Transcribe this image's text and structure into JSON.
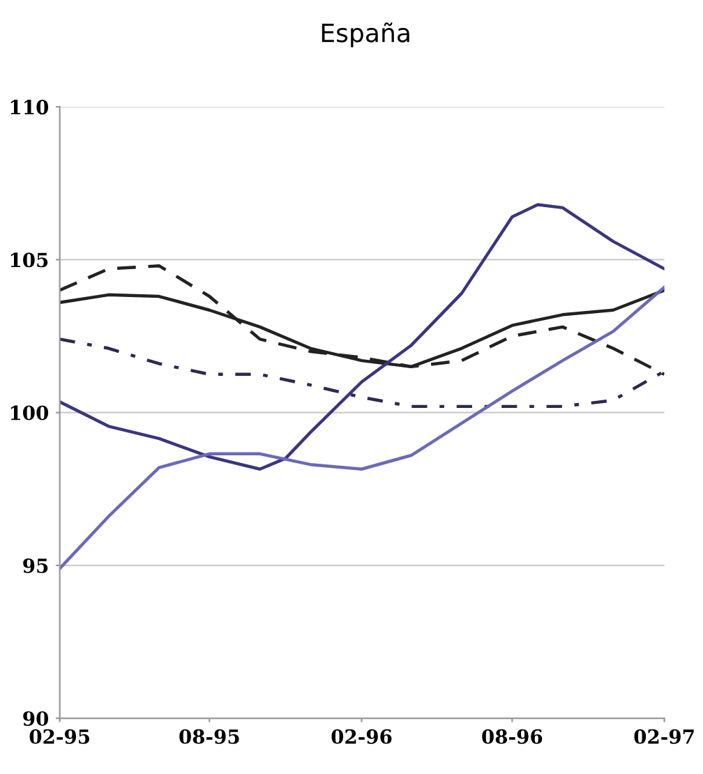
{
  "chart_data": {
    "type": "line",
    "title": "España",
    "x": [
      "1995-02",
      "1995-04",
      "1995-06",
      "1995-08",
      "1995-10",
      "1995-12",
      "1996-02",
      "1996-04",
      "1996-06",
      "1996-08",
      "1996-10",
      "1996-12",
      "1997-02"
    ],
    "series": [
      {
        "color": "#222222",
        "line_style": "solid",
        "values": [
          103.6,
          103.85,
          103.8,
          103.35,
          102.8,
          102.1,
          101.7,
          101.5,
          102.1,
          102.85,
          103.2,
          103.35,
          104.0
        ]
      },
      {
        "color": "#222222",
        "line_style": "dashed",
        "values": [
          104.0,
          104.7,
          104.8,
          103.8,
          102.4,
          102.0,
          101.8,
          101.5,
          101.7,
          102.5,
          102.8,
          102.1,
          101.25
        ]
      },
      {
        "color": "#2a2a50",
        "line_style": "dotted",
        "values": [
          102.4,
          102.1,
          101.6,
          101.25,
          101.25,
          100.9,
          100.5,
          100.2,
          100.2,
          100.2,
          100.2,
          100.4,
          101.35
        ]
      },
      {
        "color": "#3a3580",
        "line_style": "solid",
        "x": [
          "1995-02",
          "1995-04",
          "1995-06",
          "1995-08",
          "1995-10",
          "1995-11",
          "1995-12",
          "1996-02",
          "1996-04",
          "1996-06",
          "1996-08",
          "1996-09",
          "1996-10",
          "1996-12",
          "1997-02"
        ],
        "values": [
          100.35,
          99.55,
          99.15,
          98.55,
          98.15,
          98.5,
          99.35,
          101.0,
          102.2,
          103.9,
          106.4,
          106.8,
          106.7,
          105.6,
          104.7
        ]
      },
      {
        "color": "#6a6ab8",
        "line_style": "solid",
        "values": [
          94.9,
          96.6,
          98.2,
          98.65,
          98.65,
          98.3,
          98.15,
          98.6,
          99.65,
          100.7,
          101.7,
          102.65,
          104.1
        ]
      }
    ],
    "xlim": [
      "1995-02",
      "1997-02"
    ],
    "xticks": [
      {
        "value": "1995-02",
        "label": "02-95"
      },
      {
        "value": "1995-08",
        "label": "08-95"
      },
      {
        "value": "1996-02",
        "label": "02-96"
      },
      {
        "value": "1996-08",
        "label": "08-96"
      },
      {
        "value": "1997-02",
        "label": "02-97"
      }
    ],
    "ylim": [
      90,
      110
    ],
    "yticks": [
      90,
      95,
      100,
      105,
      110
    ],
    "grid": "y"
  }
}
